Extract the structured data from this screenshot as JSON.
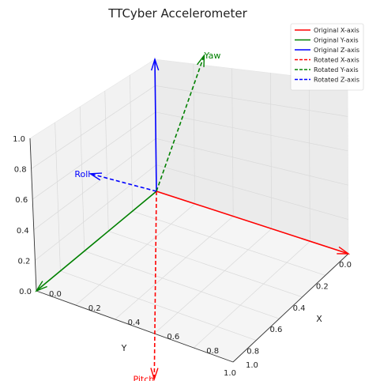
{
  "chart_data": {
    "type": "line",
    "title": "TTCyber Accelerometer",
    "xlabel": "X",
    "ylabel": "Y",
    "zlabel": "",
    "xlim": [
      0,
      1
    ],
    "ylim": [
      0,
      1
    ],
    "zlim": [
      0,
      1
    ],
    "x_ticks": [
      "0.0",
      "0.2",
      "0.4",
      "0.6",
      "0.8",
      "1.0"
    ],
    "y_ticks": [
      "0.0",
      "0.2",
      "0.4",
      "0.6",
      "0.8",
      "1.0"
    ],
    "z_ticks": [
      "0.0",
      "0.2",
      "0.4",
      "0.6",
      "0.8",
      "1.0"
    ],
    "grid": true,
    "legend_position": "top-right",
    "origin": [
      0,
      0,
      0
    ],
    "series": [
      {
        "name": "Original X-axis",
        "vector": [
          1,
          0,
          0
        ],
        "color": "#ff0000",
        "style": "solid"
      },
      {
        "name": "Original Y-axis",
        "vector": [
          0,
          1,
          0
        ],
        "color": "#008000",
        "style": "solid"
      },
      {
        "name": "Original Z-axis",
        "vector": [
          0,
          0,
          1
        ],
        "color": "#0000ff",
        "style": "solid"
      },
      {
        "name": "Rotated X-axis",
        "vector": [
          0.57,
          0.96,
          -0.28
        ],
        "color": "#ff0000",
        "style": "dashed",
        "label": "Pitch"
      },
      {
        "name": "Rotated Y-axis",
        "vector": [
          -0.12,
          -0.58,
          0.61
        ],
        "color": "#008000",
        "style": "dashed",
        "label": "Yaw"
      },
      {
        "name": "Rotated Z-axis",
        "vector": [
          -0.28,
          0.1,
          0.08
        ],
        "color": "#0000ff",
        "style": "dashed",
        "label": "Roll"
      }
    ]
  }
}
